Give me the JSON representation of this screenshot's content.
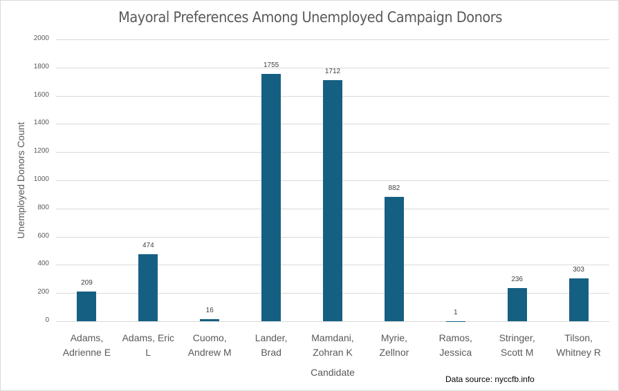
{
  "chart_data": {
    "type": "bar",
    "title": "Mayoral Preferences Among Unemployed Campaign Donors",
    "xlabel": "Candidate",
    "ylabel": "Unemployed Donors Count",
    "ylim": [
      0,
      2000
    ],
    "yticks": [
      0,
      200,
      400,
      600,
      800,
      1000,
      1200,
      1400,
      1600,
      1800,
      2000
    ],
    "grid": true,
    "legend": null,
    "bar_color": "#156082",
    "categories": [
      "Adams, Adrienne E",
      "Adams, Eric L",
      "Cuomo, Andrew M",
      "Lander, Brad",
      "Mamdani, Zohran K",
      "Myrie, Zellnor",
      "Ramos, Jessica",
      "Stringer, Scott M",
      "Tilson, Whitney R"
    ],
    "category_lines": [
      [
        "Adams,",
        "Adrienne E"
      ],
      [
        "Adams, Eric",
        "L"
      ],
      [
        "Cuomo,",
        "Andrew M"
      ],
      [
        "Lander,",
        "Brad"
      ],
      [
        "Mamdani,",
        "Zohran K"
      ],
      [
        "Myrie,",
        "Zellnor"
      ],
      [
        "Ramos,",
        "Jessica"
      ],
      [
        "Stringer,",
        "Scott M"
      ],
      [
        "Tilson,",
        "Whitney R"
      ]
    ],
    "values": [
      209,
      474,
      16,
      1755,
      1712,
      882,
      1,
      236,
      303
    ],
    "annotation": "Data source: nyccfb.info"
  }
}
